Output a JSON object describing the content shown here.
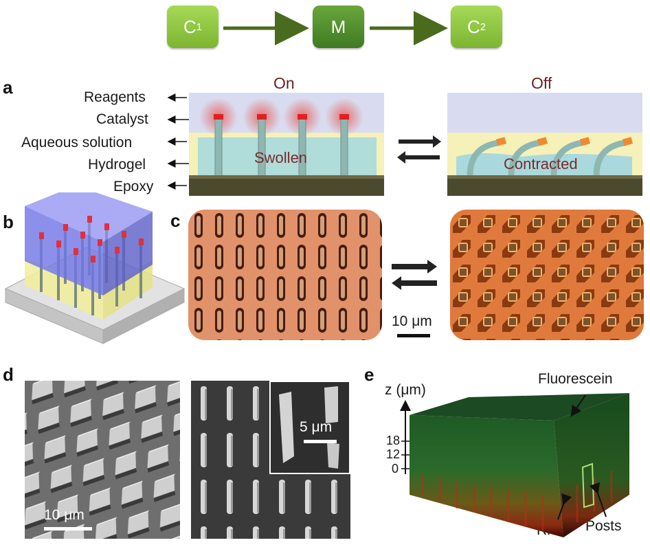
{
  "scheme": {
    "nodes": [
      {
        "main": "C",
        "sub": "1"
      },
      {
        "main": "M",
        "sub": ""
      },
      {
        "main": "C",
        "sub": "2"
      }
    ],
    "colors": {
      "light_node": "#8cc63f",
      "dark_node": "#4f8a2a",
      "arrow": "#4a6b1e"
    }
  },
  "panel_a": {
    "letter": "a",
    "labels": [
      "Reagents",
      "Catalyst",
      "Aqueous solution",
      "Hydrogel",
      "Epoxy"
    ],
    "on_label": "On",
    "off_label": "Off",
    "on_state": "Swollen",
    "off_state": "Contracted"
  },
  "panel_b": {
    "letter": "b"
  },
  "panel_c": {
    "letter": "c",
    "scale_label": "10 μm"
  },
  "panel_d": {
    "letter": "d",
    "scale_left": "10 μm",
    "scale_inset": "5 μm"
  },
  "panel_e": {
    "letter": "e",
    "axis_label": "z (μm)",
    "ticks": [
      "18",
      "12",
      "0"
    ],
    "annotations": [
      "Fluorescein",
      "Rh B",
      "Posts"
    ]
  }
}
